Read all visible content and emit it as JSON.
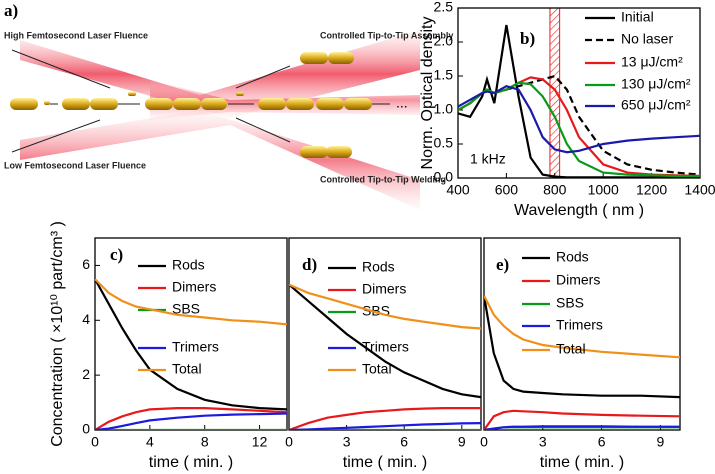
{
  "diagram": {
    "label": "a)",
    "high": "High Femtosecond Laser Fluence",
    "low": "Low Femtosecond Laser Fluence",
    "assembly": "Controlled Tip-to-Tip Assembly",
    "welding": "Controlled Tip-to-Tip Welding",
    "more": "..."
  },
  "chart_data": [
    {
      "type": "line",
      "label": "b)",
      "annotation": "1 kHz",
      "xlabel": "Wavelength ( nm )",
      "ylabel": "Norm. Optical density",
      "xlim": [
        400,
        1400
      ],
      "xticks": [
        400,
        600,
        800,
        1000,
        1200,
        1400
      ],
      "ylim": [
        0,
        2.5
      ],
      "yticks": [
        {
          "value": 0,
          "label": "0.0"
        },
        {
          "value": 0.5,
          "label": "0.5"
        },
        {
          "value": 1,
          "label": "1.0"
        },
        {
          "value": 1.5,
          "label": "1.5"
        },
        {
          "value": 2,
          "label": "2.0"
        },
        {
          "value": 2.5,
          "label": "2.5"
        }
      ],
      "highlight": [
        780,
        820
      ],
      "x": [
        400,
        450,
        500,
        520,
        550,
        600,
        650,
        700,
        750,
        800,
        850,
        900,
        1000,
        1100,
        1200,
        1300,
        1400
      ],
      "series": [
        {
          "name": "Initial",
          "color": "#000000",
          "values": [
            0.95,
            0.9,
            1.2,
            1.45,
            1.1,
            2.25,
            1.2,
            0.3,
            0.05,
            0.02,
            0.01,
            0.01,
            0.01,
            0.01,
            0.01,
            0.01,
            0.01
          ]
        },
        {
          "name": "No laser",
          "color": "#000000",
          "linestyle": "dashed",
          "values": [
            1.0,
            1.1,
            1.25,
            1.3,
            1.25,
            1.3,
            1.35,
            1.4,
            1.45,
            1.5,
            1.3,
            0.9,
            0.4,
            0.2,
            0.12,
            0.08,
            0.05
          ]
        },
        {
          "name": "13 μJ/cm²",
          "color": "#e8191c",
          "values": [
            1.0,
            1.1,
            1.25,
            1.3,
            1.25,
            1.3,
            1.4,
            1.48,
            1.45,
            1.3,
            1.0,
            0.6,
            0.2,
            0.08,
            0.05,
            0.04,
            0.03
          ]
        },
        {
          "name": "130 μJ/cm²",
          "color": "#0a9a1a",
          "values": [
            1.0,
            1.1,
            1.25,
            1.3,
            1.25,
            1.3,
            1.4,
            1.38,
            1.2,
            0.9,
            0.5,
            0.25,
            0.08,
            0.05,
            0.04,
            0.03,
            0.03
          ]
        },
        {
          "name": "650 μJ/cm²",
          "color": "#1a1aa8",
          "values": [
            1.05,
            1.15,
            1.25,
            1.27,
            1.25,
            1.35,
            1.3,
            1.0,
            0.6,
            0.42,
            0.38,
            0.4,
            0.5,
            0.55,
            0.58,
            0.6,
            0.62
          ]
        }
      ]
    },
    {
      "type": "line",
      "label": "c)",
      "xlabel": "time ( min. )",
      "ylabel": "Concentration ( ×10¹⁰ part/cm³ )",
      "xlim": [
        0,
        14
      ],
      "xticks": [
        0,
        4,
        8,
        12
      ],
      "ylim": [
        0,
        7
      ],
      "yticks": [
        0,
        2,
        4,
        6
      ],
      "x": [
        0,
        1,
        2,
        3,
        4,
        6,
        8,
        10,
        12,
        14
      ],
      "series": [
        {
          "name": "Rods",
          "color": "#000000",
          "values": [
            5.5,
            4.6,
            3.7,
            2.9,
            2.2,
            1.5,
            1.1,
            0.9,
            0.8,
            0.75
          ]
        },
        {
          "name": "Dimers",
          "color": "#e8191c",
          "values": [
            0,
            0.3,
            0.5,
            0.65,
            0.75,
            0.8,
            0.8,
            0.75,
            0.7,
            0.65
          ]
        },
        {
          "name": "SBS",
          "color": "#0a9a1a",
          "values": [
            0,
            0,
            0,
            0,
            0,
            0,
            0,
            0,
            0,
            0
          ]
        },
        {
          "name": "Trimers",
          "color": "#1a1ae0",
          "values": [
            0,
            0.05,
            0.15,
            0.25,
            0.35,
            0.45,
            0.52,
            0.56,
            0.58,
            0.6
          ]
        },
        {
          "name": "Total",
          "color": "#f0901a",
          "values": [
            5.5,
            5.0,
            4.7,
            4.5,
            4.4,
            4.2,
            4.1,
            4.0,
            3.95,
            3.85
          ]
        }
      ]
    },
    {
      "type": "line",
      "label": "d)",
      "xlabel": "time ( min. )",
      "xlim": [
        0,
        10
      ],
      "xticks": [
        0,
        3,
        6,
        9
      ],
      "ylim": [
        0,
        7
      ],
      "x": [
        0,
        1,
        2,
        3,
        4,
        5,
        6,
        7,
        8,
        9,
        10
      ],
      "series": [
        {
          "name": "Rods",
          "color": "#000000",
          "values": [
            5.3,
            4.7,
            4.1,
            3.5,
            3.0,
            2.5,
            2.1,
            1.8,
            1.5,
            1.3,
            1.2
          ]
        },
        {
          "name": "Dimers",
          "color": "#e8191c",
          "values": [
            0,
            0.25,
            0.45,
            0.55,
            0.65,
            0.7,
            0.75,
            0.78,
            0.8,
            0.8,
            0.8
          ]
        },
        {
          "name": "SBS",
          "color": "#0a9a1a",
          "values": [
            0,
            0,
            0,
            0,
            0,
            0,
            0,
            0,
            0,
            0,
            0
          ]
        },
        {
          "name": "Trimers",
          "color": "#1a1ae0",
          "values": [
            0,
            0.02,
            0.05,
            0.08,
            0.11,
            0.14,
            0.17,
            0.2,
            0.22,
            0.24,
            0.25
          ]
        },
        {
          "name": "Total",
          "color": "#f0901a",
          "values": [
            5.3,
            5.0,
            4.8,
            4.6,
            4.4,
            4.2,
            4.05,
            3.95,
            3.85,
            3.75,
            3.7
          ]
        }
      ]
    },
    {
      "type": "line",
      "label": "e)",
      "xlabel": "time ( min. )",
      "xlim": [
        0,
        10
      ],
      "xticks": [
        0,
        3,
        6,
        9
      ],
      "ylim": [
        0,
        7
      ],
      "x": [
        0,
        0.5,
        1,
        1.5,
        2,
        3,
        4,
        6,
        8,
        10
      ],
      "series": [
        {
          "name": "Rods",
          "color": "#000000",
          "values": [
            4.9,
            2.8,
            1.8,
            1.5,
            1.4,
            1.35,
            1.3,
            1.25,
            1.25,
            1.2
          ]
        },
        {
          "name": "Dimers",
          "color": "#e8191c",
          "values": [
            0,
            0.5,
            0.65,
            0.7,
            0.68,
            0.65,
            0.6,
            0.55,
            0.52,
            0.5
          ]
        },
        {
          "name": "SBS",
          "color": "#0a9a1a",
          "values": [
            0,
            0.05,
            0.1,
            0.1,
            0.1,
            0.1,
            0.1,
            0.1,
            0.1,
            0.1
          ]
        },
        {
          "name": "Trimers",
          "color": "#1a1ae0",
          "values": [
            0,
            0.05,
            0.1,
            0.12,
            0.12,
            0.13,
            0.13,
            0.13,
            0.12,
            0.12
          ]
        },
        {
          "name": "Total",
          "color": "#f0901a",
          "values": [
            4.9,
            4.2,
            3.8,
            3.5,
            3.3,
            3.1,
            3.0,
            2.85,
            2.75,
            2.65
          ]
        }
      ]
    }
  ]
}
